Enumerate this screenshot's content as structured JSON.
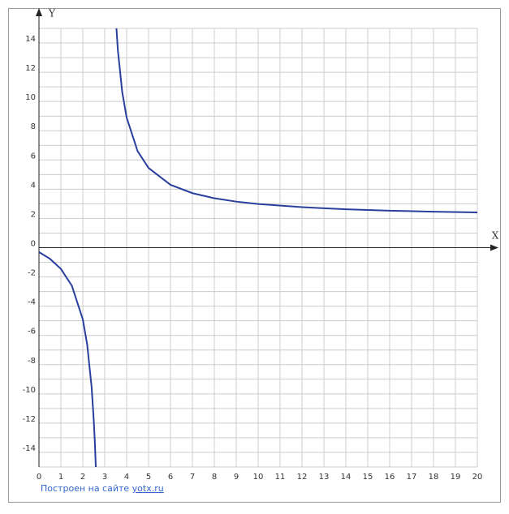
{
  "chart_data": {
    "type": "line",
    "x_label": "X",
    "y_label": "Y",
    "x": [
      0,
      0.5,
      1,
      1.5,
      2,
      2.2,
      2.4,
      2.5,
      2.55,
      2.6,
      null,
      3.5,
      3.6,
      3.8,
      4,
      4.5,
      5,
      6,
      7,
      8,
      9,
      10,
      12,
      14,
      16,
      18,
      20
    ],
    "series": [
      {
        "color": "#2a3f9d",
        "values": [
          -0.3,
          -0.76,
          -1.45,
          -2.6,
          -4.9,
          -6.63,
          -9.5,
          -11.8,
          -13.33,
          -15.25,
          null,
          15.8,
          13.5,
          10.63,
          8.9,
          6.6,
          5.45,
          4.3,
          3.73,
          3.38,
          3.15,
          2.99,
          2.77,
          2.63,
          2.53,
          2.46,
          2.41
        ]
      }
    ],
    "xlim": [
      0,
      20
    ],
    "ylim": [
      -15,
      15
    ],
    "xticks": [
      0,
      1,
      2,
      3,
      4,
      5,
      6,
      7,
      8,
      9,
      10,
      11,
      12,
      13,
      14,
      15,
      16,
      17,
      18,
      19,
      20
    ],
    "yticks": [
      -14,
      -12,
      -10,
      -8,
      -6,
      -4,
      -2,
      0,
      2,
      4,
      6,
      8,
      10,
      12,
      14
    ],
    "ygrid": [
      -15,
      -14,
      -13,
      -12,
      -11,
      -10,
      -9,
      -8,
      -7,
      -6,
      -5,
      -4,
      -3,
      -2,
      -1,
      0,
      1,
      2,
      3,
      4,
      5,
      6,
      7,
      8,
      9,
      10,
      11,
      12,
      13,
      14,
      15
    ],
    "grid": true
  },
  "footer": {
    "text": "Построен на сайте",
    "link": "yotx.ru"
  }
}
